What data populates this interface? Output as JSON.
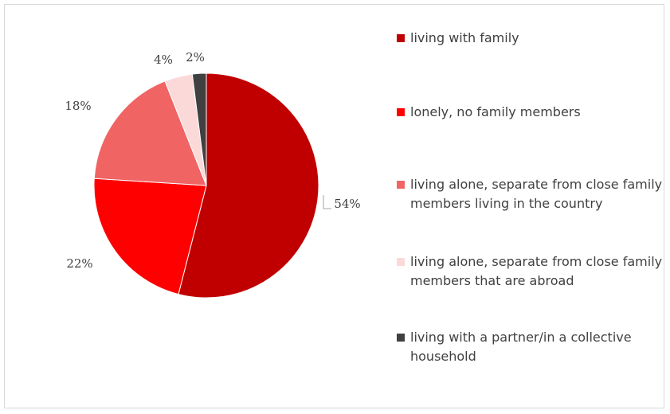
{
  "chart_data": {
    "type": "pie",
    "slices": [
      {
        "label": "living with family",
        "value": 54,
        "display": "54%",
        "color": "#C00000"
      },
      {
        "label": "lonely, no family members",
        "value": 22,
        "display": "22%",
        "color": "#FF0000"
      },
      {
        "label": "living alone, separate from close family members living in the country",
        "value": 18,
        "display": "18%",
        "color": "#F06464"
      },
      {
        "label": "living alone, separate from close family members that are abroad",
        "value": 4,
        "display": "4%",
        "color": "#FCD9D9"
      },
      {
        "label": "living with a partner/in a collective household",
        "value": 2,
        "display": "2%",
        "color": "#404040"
      }
    ],
    "legend_position": "right"
  }
}
